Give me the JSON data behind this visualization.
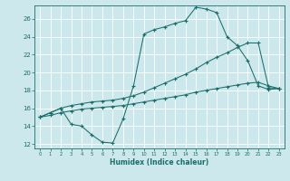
{
  "xlabel": "Humidex (Indice chaleur)",
  "bg_color": "#cce8ec",
  "grid_color": "#ffffff",
  "line_color": "#1a6e6a",
  "xlim": [
    -0.5,
    23.5
  ],
  "ylim": [
    11.5,
    27.5
  ],
  "yticks": [
    12,
    14,
    16,
    18,
    20,
    22,
    24,
    26
  ],
  "xticks": [
    0,
    1,
    2,
    3,
    4,
    5,
    6,
    7,
    8,
    9,
    10,
    11,
    12,
    13,
    14,
    15,
    16,
    17,
    18,
    19,
    20,
    21,
    22,
    23
  ],
  "curve1_x": [
    0,
    1,
    2,
    3,
    4,
    5,
    6,
    7,
    8,
    9,
    10,
    11,
    12,
    13,
    14,
    15,
    16,
    17,
    18,
    19,
    20,
    21,
    22,
    23
  ],
  "curve1_y": [
    15,
    15.5,
    16.0,
    14.2,
    14.0,
    13.0,
    12.2,
    12.1,
    14.8,
    18.5,
    24.3,
    24.8,
    25.1,
    25.5,
    25.8,
    27.3,
    27.1,
    26.7,
    24.0,
    23.0,
    21.3,
    18.5,
    18.1,
    18.2
  ],
  "curve2_x": [
    0,
    1,
    2,
    3,
    4,
    5,
    6,
    7,
    8,
    9,
    10,
    11,
    12,
    13,
    14,
    15,
    16,
    17,
    18,
    19,
    20,
    21,
    22,
    23
  ],
  "curve2_y": [
    15.0,
    15.5,
    16.0,
    16.3,
    16.5,
    16.7,
    16.8,
    16.9,
    17.1,
    17.4,
    17.8,
    18.3,
    18.8,
    19.3,
    19.8,
    20.4,
    21.1,
    21.7,
    22.2,
    22.8,
    23.3,
    23.3,
    18.3,
    18.2
  ],
  "curve3_x": [
    0,
    1,
    2,
    3,
    4,
    5,
    6,
    7,
    8,
    9,
    10,
    11,
    12,
    13,
    14,
    15,
    16,
    17,
    18,
    19,
    20,
    21,
    22,
    23
  ],
  "curve3_y": [
    15.0,
    15.2,
    15.5,
    15.7,
    15.9,
    16.0,
    16.1,
    16.2,
    16.3,
    16.5,
    16.7,
    16.9,
    17.1,
    17.3,
    17.5,
    17.8,
    18.0,
    18.2,
    18.4,
    18.6,
    18.8,
    18.9,
    18.5,
    18.2
  ]
}
